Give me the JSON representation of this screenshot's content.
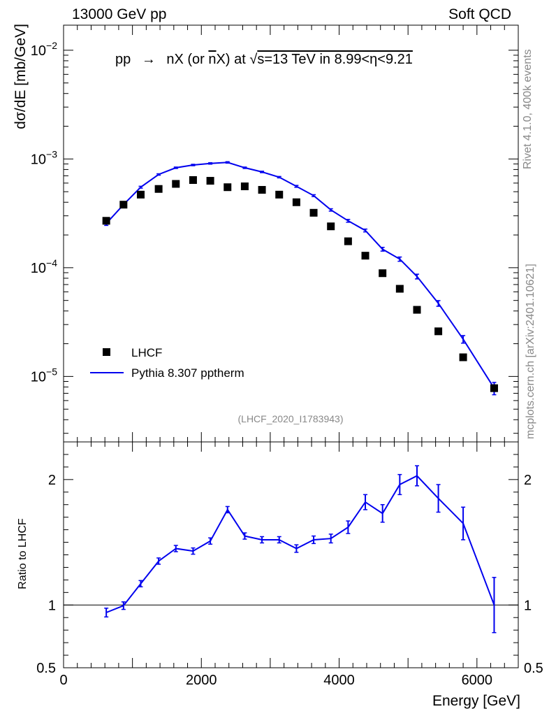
{
  "header": {
    "left": "13000 GeV pp",
    "right": "Soft QCD"
  },
  "side_labels": {
    "rivet": "Rivet 4.1.0,  400k events",
    "mcplots": "mcplots.cern.ch [arXiv:2401.10621]"
  },
  "chart_data": [
    {
      "type": "scatter+line",
      "title": "pp → nX (or n̄X) at √s=13 TeV in 8.99<η<9.21",
      "title_parts": {
        "pre": "pp",
        "arrow": "→",
        "mid": "nX (or ",
        "nbar": "n",
        "post": "X) at ",
        "sqrt": "√",
        "s_eq": "s=13 TeV in 8.99<η<9.21"
      },
      "analysis_id": "(LHCF_2020_I1783943)",
      "ylabel": "dσ/dE [mb/GeV]",
      "yscale": "log",
      "ylim": [
        2.5e-06,
        0.017
      ],
      "xlim": [
        0,
        6600
      ],
      "y_ticks": [
        {
          "value": 1e-05,
          "base": "10",
          "exp": "−5"
        },
        {
          "value": 0.0001,
          "base": "10",
          "exp": "−4"
        },
        {
          "value": 0.001,
          "base": "10",
          "exp": "−3"
        },
        {
          "value": 0.01,
          "base": "10",
          "exp": "−2"
        }
      ],
      "legend": [
        {
          "label": "LHCF",
          "marker": "square",
          "color": "#000000"
        },
        {
          "label": "Pythia 8.307 pptherm",
          "marker": "line",
          "color": "#0000ee"
        }
      ],
      "series": [
        {
          "name": "LHCF",
          "x": [
            620,
            870,
            1120,
            1380,
            1630,
            1880,
            2130,
            2380,
            2630,
            2880,
            3130,
            3380,
            3630,
            3880,
            4130,
            4380,
            4630,
            4880,
            5130,
            5440,
            5800,
            6250
          ],
          "values": [
            0.00027,
            0.00038,
            0.00047,
            0.00053,
            0.00059,
            0.00064,
            0.00063,
            0.00055,
            0.00056,
            0.00052,
            0.00047,
            0.0004,
            0.00032,
            0.00024,
            0.000175,
            0.000129,
            8.9e-05,
            6.4e-05,
            4.1e-05,
            2.6e-05,
            1.5e-05,
            7.8e-06
          ]
        },
        {
          "name": "Pythia 8.307 pptherm",
          "x": [
            620,
            870,
            1120,
            1380,
            1630,
            1880,
            2130,
            2380,
            2630,
            2880,
            3130,
            3380,
            3630,
            3880,
            4130,
            4380,
            4630,
            4880,
            5130,
            5440,
            5800,
            6250
          ],
          "values": [
            0.000255,
            0.00038,
            0.00055,
            0.00072,
            0.00083,
            0.00088,
            0.00091,
            0.00093,
            0.00083,
            0.00076,
            0.00068,
            0.00056,
            0.00046,
            0.00034,
            0.00027,
            0.00022,
            0.000148,
            0.00012,
            8.3e-05,
            4.7e-05,
            2.2e-05,
            7.8e-06
          ],
          "rel_errors": [
            0.04,
            0.03,
            0.02,
            0.015,
            0.015,
            0.015,
            0.015,
            0.015,
            0.015,
            0.015,
            0.015,
            0.02,
            0.02,
            0.025,
            0.03,
            0.03,
            0.04,
            0.045,
            0.05,
            0.06,
            0.08,
            0.13
          ]
        }
      ]
    },
    {
      "type": "line",
      "ylabel": "Ratio to LHCF",
      "xlabel": "Energy [GeV]",
      "ylim": [
        0.5,
        2.3
      ],
      "xlim": [
        0,
        6600
      ],
      "reference_line": 1,
      "y_ticks": [
        0.5,
        1,
        2
      ],
      "y_tick_labels": [
        "0.5",
        "1",
        "2"
      ],
      "x_ticks": [
        0,
        2000,
        4000,
        6000
      ],
      "x_tick_labels": [
        "0",
        "2000",
        "4000",
        "6000"
      ],
      "series": [
        {
          "name": "Pythia 8.307 pptherm / LHCF",
          "x": [
            620,
            870,
            1120,
            1380,
            1630,
            1880,
            2130,
            2380,
            2630,
            2880,
            3130,
            3380,
            3630,
            3880,
            4130,
            4380,
            4630,
            4880,
            5130,
            5440,
            5800,
            6250
          ],
          "values": [
            0.94,
            0.995,
            1.17,
            1.35,
            1.45,
            1.43,
            1.51,
            1.76,
            1.55,
            1.52,
            1.52,
            1.45,
            1.52,
            1.53,
            1.62,
            1.82,
            1.73,
            1.96,
            2.03,
            1.85,
            1.65,
            1.0
          ],
          "errors": [
            0.035,
            0.03,
            0.025,
            0.025,
            0.025,
            0.025,
            0.025,
            0.025,
            0.025,
            0.025,
            0.025,
            0.03,
            0.03,
            0.035,
            0.05,
            0.06,
            0.07,
            0.08,
            0.08,
            0.11,
            0.13,
            0.22
          ]
        }
      ]
    }
  ]
}
